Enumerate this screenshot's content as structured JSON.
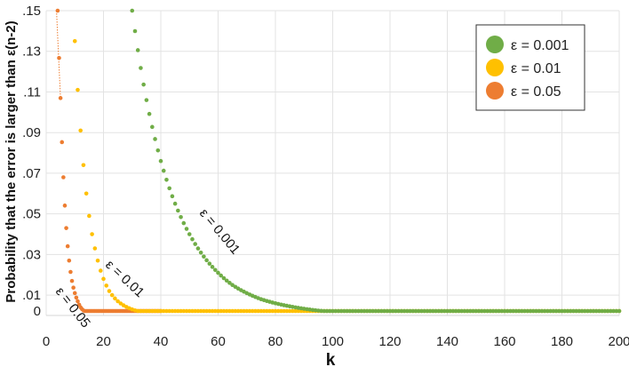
{
  "chart_data": {
    "type": "scatter",
    "xlabel": "k",
    "ylabel": "Probability that the error is larger than ε(n-2)",
    "xlim": [
      0,
      200
    ],
    "ylim": [
      0,
      0.15
    ],
    "x_ticks": [
      "0",
      "20",
      "40",
      "60",
      "80",
      "100",
      "120",
      "140",
      "160",
      "180",
      "200"
    ],
    "y_ticks": [
      "0",
      ".01",
      ".03",
      ".05",
      ".07",
      ".09",
      ".11",
      ".13",
      ".15"
    ],
    "grid": true,
    "legend_position": "top-right",
    "series": [
      {
        "name": "ε = 0.001",
        "color": "#70AD47",
        "curve_label": "ε = 0.001",
        "points": [
          [
            30,
            0.15
          ],
          [
            35,
            0.106
          ],
          [
            40,
            0.076
          ],
          [
            45,
            0.055
          ],
          [
            50,
            0.04
          ],
          [
            55,
            0.029
          ],
          [
            60,
            0.021
          ],
          [
            65,
            0.015
          ],
          [
            70,
            0.011
          ],
          [
            75,
            0.008
          ],
          [
            80,
            0.006
          ],
          [
            85,
            0.0045
          ],
          [
            90,
            0.0033
          ],
          [
            95,
            0.0024
          ],
          [
            100,
            0.0018
          ],
          [
            110,
            0.001
          ],
          [
            120,
            0.0005
          ],
          [
            130,
            0.0003
          ],
          [
            140,
            0.0001
          ],
          [
            160,
            0.0
          ],
          [
            180,
            0.0
          ],
          [
            200,
            0.0
          ]
        ]
      },
      {
        "name": "ε = 0.01",
        "color": "#FFC000",
        "curve_label": "ε = 0.01",
        "points": [
          [
            10,
            0.135
          ],
          [
            11,
            0.111
          ],
          [
            12,
            0.091
          ],
          [
            13,
            0.074
          ],
          [
            14,
            0.06
          ],
          [
            15,
            0.049
          ],
          [
            16,
            0.04
          ],
          [
            17,
            0.033
          ],
          [
            18,
            0.027
          ],
          [
            20,
            0.018
          ],
          [
            22,
            0.012
          ],
          [
            25,
            0.007
          ],
          [
            30,
            0.003
          ],
          [
            35,
            0.0012
          ],
          [
            40,
            0.0005
          ],
          [
            50,
            0.0
          ],
          [
            100,
            0.0
          ],
          [
            150,
            0.0
          ],
          [
            200,
            0.0
          ]
        ]
      },
      {
        "name": "ε = 0.05",
        "color": "#ED7D31",
        "curve_label": "ε = 0.05",
        "points": [
          [
            4,
            0.15
          ],
          [
            5,
            0.107
          ],
          [
            6,
            0.068
          ],
          [
            7,
            0.043
          ],
          [
            8,
            0.027
          ],
          [
            9,
            0.017
          ],
          [
            10,
            0.011
          ],
          [
            11,
            0.007
          ],
          [
            12,
            0.004
          ],
          [
            14,
            0.0015
          ],
          [
            16,
            0.0005
          ],
          [
            20,
            0.0
          ],
          [
            30,
            0.0
          ],
          [
            40,
            0.0
          ]
        ]
      }
    ]
  }
}
